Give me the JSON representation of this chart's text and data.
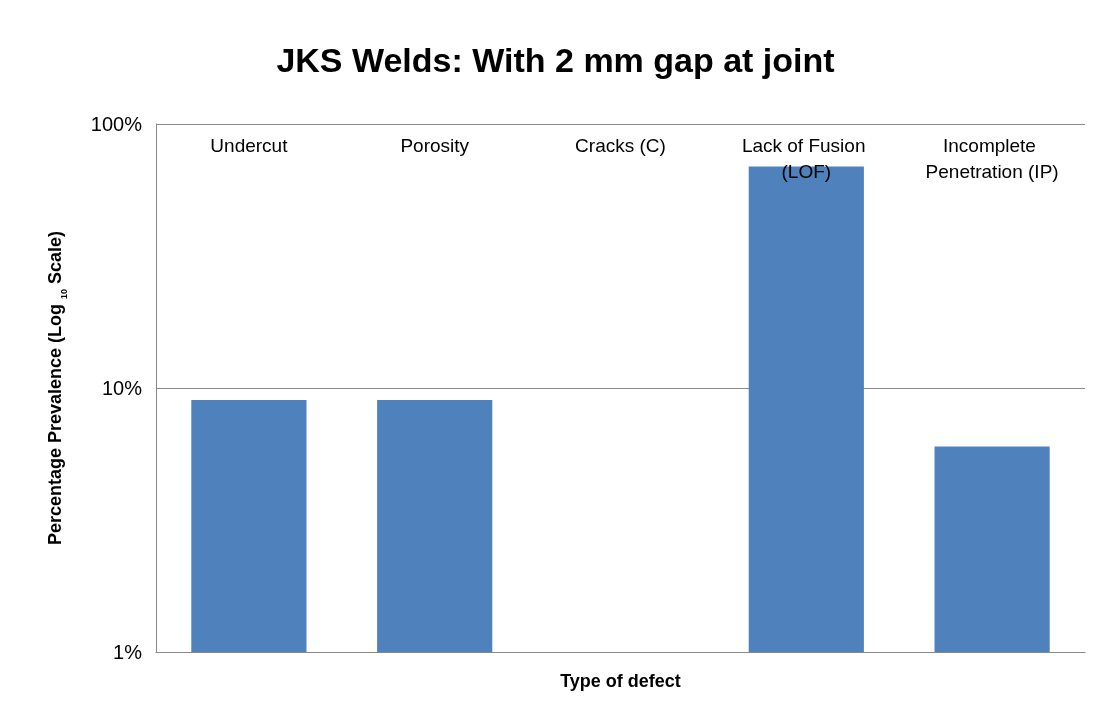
{
  "chart_data": {
    "type": "bar",
    "title": "JKS Welds: With 2 mm gap at joint",
    "xlabel": "Type of defect",
    "ylabel": "Percentage Prevalence (Log $_{10}$ Scale)",
    "categories": [
      "Undercut",
      "Porosity",
      "Cracks (C)",
      "Lack of Fusion (LOF)",
      "Incomplete Penetration (IP)"
    ],
    "values": [
      9,
      9,
      null,
      69,
      6
    ],
    "color": "#4f81bd",
    "log": "y",
    "ylim": [
      1,
      100
    ],
    "yticks": [
      {
        "value": 1,
        "label": "1%"
      },
      {
        "value": 10,
        "label": "10%"
      },
      {
        "value": 100,
        "label": "100%"
      }
    ],
    "grid": "y"
  }
}
